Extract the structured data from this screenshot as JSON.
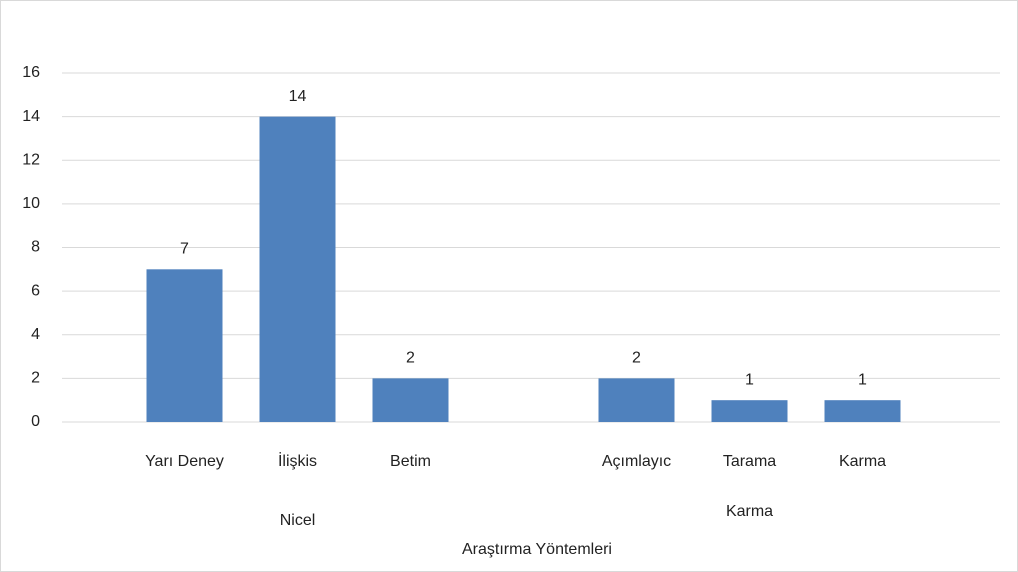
{
  "chart_data": {
    "type": "bar",
    "categories": [
      "Yarı Deney",
      "İlişkis",
      "Betim",
      null,
      "Açımlayıc",
      "Tarama",
      "Karma"
    ],
    "values": [
      7,
      14,
      2,
      null,
      2,
      1,
      1
    ],
    "groups": [
      {
        "name": "Nicel",
        "categories": [
          0,
          1,
          2
        ]
      },
      {
        "name": "Karma",
        "categories": [
          4,
          5,
          6
        ]
      }
    ],
    "color": "#4f81bd",
    "x_label": "Araştırma Yöntemleri",
    "ylim": [
      0,
      16
    ],
    "yticks": [
      0,
      2,
      4,
      6,
      8,
      10,
      12,
      14,
      16
    ],
    "grid": true
  }
}
